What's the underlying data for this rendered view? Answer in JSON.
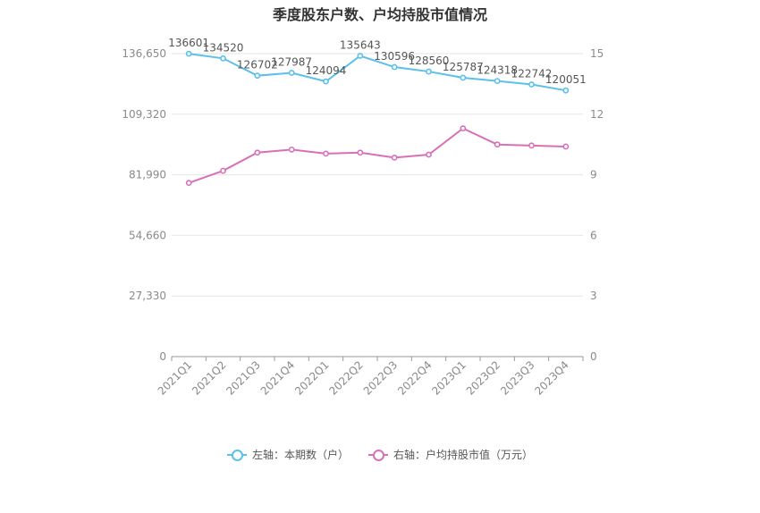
{
  "chart_data": {
    "type": "line",
    "title": "季度股东户数、户均持股市值情况",
    "categories": [
      "2021Q1",
      "2021Q2",
      "2021Q3",
      "2021Q4",
      "2022Q1",
      "2022Q2",
      "2022Q3",
      "2022Q4",
      "2023Q1",
      "2023Q2",
      "2023Q3",
      "2023Q4"
    ],
    "series": [
      {
        "name": "左轴：本期数（户）",
        "axis": "left",
        "color": "#5bc0eb",
        "values": [
          136601,
          134520,
          126702,
          127987,
          124094,
          135643,
          130596,
          128560,
          125787,
          124318,
          122742,
          120051
        ],
        "labels": [
          "136601",
          "134520",
          "126702",
          "127987",
          "124094",
          "135643",
          "130596",
          "128560",
          "125787",
          "124318",
          "122742",
          "120051"
        ]
      },
      {
        "name": "右轴：户均持股市值（万元）",
        "axis": "right",
        "color": "#d870b8",
        "values": [
          8.6,
          9.2,
          10.1,
          10.25,
          10.05,
          10.1,
          9.85,
          10.0,
          11.3,
          10.5,
          10.45,
          10.4
        ]
      }
    ],
    "y_left": {
      "min": 0,
      "max": 136650,
      "ticks": [
        0,
        27330,
        54660,
        81990,
        109320,
        136650
      ],
      "tick_labels": [
        "0",
        "27,330",
        "54,660",
        "81,990",
        "109,320",
        "136,650"
      ]
    },
    "y_right": {
      "min": 0,
      "max": 15,
      "ticks": [
        0,
        3,
        6,
        9,
        12,
        15
      ],
      "tick_labels": [
        "0",
        "3",
        "6",
        "9",
        "12",
        "15"
      ]
    },
    "grid": true,
    "legend_position": "bottom"
  }
}
